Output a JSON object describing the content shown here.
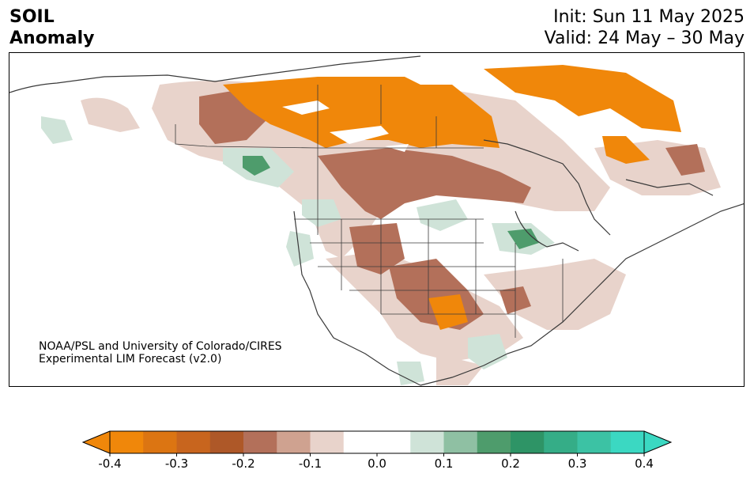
{
  "header": {
    "title_line1": "SOIL",
    "title_line2": "Anomaly",
    "init_line": "Init: Sun 11 May 2025",
    "valid_line": "Valid: 24 May – 30 May"
  },
  "credit": {
    "line1": "NOAA/PSL and University of Colorado/CIRES",
    "line2": "Experimental LIM Forecast (v2.0)"
  },
  "colorbar": {
    "ticks": [
      "-0.4",
      "-0.3",
      "-0.2",
      "-0.1",
      "0.0",
      "0.1",
      "0.2",
      "0.3",
      "0.4"
    ],
    "bin_colors": [
      "#f0870a",
      "#dc7512",
      "#c8651e",
      "#ae5828",
      "#b3705a",
      "#cfa290",
      "#e8d3cb",
      "#ffffff",
      "#ffffff",
      "#cfe3d8",
      "#8fc0a3",
      "#4e9c6c",
      "#2e9466",
      "#35ad87",
      "#3cc2a4",
      "#3bd8c2"
    ],
    "extend_low_color": "#f0870a",
    "extend_high_color": "#3bd8c2"
  },
  "map": {
    "dry_color": "#f0870a",
    "moist_color": "#4e9c6c"
  }
}
